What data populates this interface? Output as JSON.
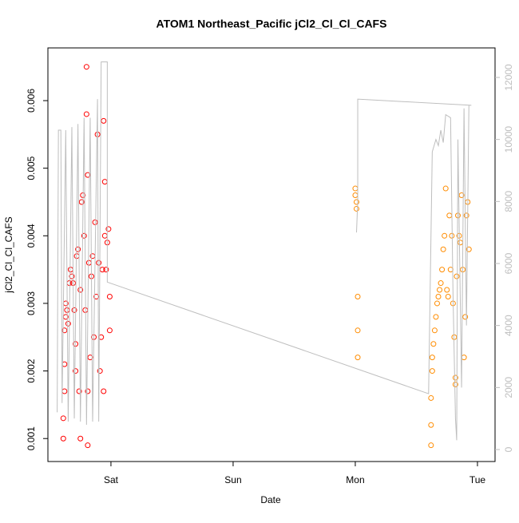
{
  "chart_data": {
    "type": "scatter",
    "title": "ATOM1 Northeast_Pacific jCl2_Cl_Cl_CAFS",
    "x_label": "Date",
    "y_label": "jCl2_Cl_Cl_CAFS",
    "xlim": [
      -0.516,
      3.144
    ],
    "xticks": [
      {
        "value": 0,
        "label": "Sat"
      },
      {
        "value": 1,
        "label": "Sun"
      },
      {
        "value": 2,
        "label": "Mon"
      },
      {
        "value": 3,
        "label": "Tue"
      }
    ],
    "ylim": [
      0.00066,
      0.00678
    ],
    "yticks": [
      0.001,
      0.002,
      0.003,
      0.004,
      0.005,
      0.006
    ],
    "y2lim": [
      -386,
      12952
    ],
    "y2ticks": [
      0,
      2000,
      4000,
      6000,
      8000,
      10000,
      12000
    ],
    "series": [
      {
        "color": "#ff0000",
        "x": [
          -0.39,
          -0.39,
          -0.38,
          -0.38,
          -0.38,
          -0.37,
          -0.37,
          -0.36,
          -0.35,
          -0.34,
          -0.33,
          -0.32,
          -0.31,
          -0.3,
          -0.29,
          -0.29,
          -0.28,
          -0.27,
          -0.26,
          -0.25,
          -0.25,
          -0.24,
          -0.23,
          -0.22,
          -0.21,
          -0.2,
          -0.2,
          -0.19,
          -0.19,
          -0.19,
          -0.18,
          -0.17,
          -0.16,
          -0.15,
          -0.14,
          -0.13,
          -0.12,
          -0.11,
          -0.1,
          -0.09,
          -0.08,
          -0.07,
          -0.06,
          -0.06,
          -0.05,
          -0.05,
          -0.04,
          -0.03,
          -0.02,
          -0.01,
          -0.01
        ],
        "values": [
          0.001,
          0.0013,
          0.0017,
          0.0021,
          0.0026,
          0.0028,
          0.003,
          0.0029,
          0.0027,
          0.0033,
          0.0035,
          0.0034,
          0.0033,
          0.0029,
          0.0024,
          0.002,
          0.0037,
          0.0038,
          0.0017,
          0.001,
          0.0032,
          0.0045,
          0.0046,
          0.004,
          0.0029,
          0.0065,
          0.0058,
          0.0049,
          0.0017,
          0.0009,
          0.0036,
          0.0022,
          0.0034,
          0.0037,
          0.0025,
          0.0042,
          0.0031,
          0.0055,
          0.0036,
          0.002,
          0.0025,
          0.0035,
          0.0017,
          0.0057,
          0.0048,
          0.004,
          0.0035,
          0.0039,
          0.0041,
          0.0031,
          0.0026
        ]
      },
      {
        "color": "#ff8c00",
        "x": [
          2.0,
          2.0,
          2.01,
          2.01,
          2.02,
          2.02,
          2.02,
          2.62,
          2.62,
          2.62,
          2.63,
          2.63,
          2.64,
          2.65,
          2.66,
          2.67,
          2.68,
          2.69,
          2.7,
          2.71,
          2.72,
          2.73,
          2.74,
          2.75,
          2.76,
          2.77,
          2.78,
          2.79,
          2.8,
          2.81,
          2.82,
          2.82,
          2.83,
          2.84,
          2.85,
          2.86,
          2.87,
          2.88,
          2.89,
          2.9,
          2.91,
          2.92,
          2.93
        ],
        "values": [
          0.0047,
          0.0046,
          0.0045,
          0.0044,
          0.0031,
          0.0026,
          0.0022,
          0.0009,
          0.0012,
          0.0016,
          0.002,
          0.0022,
          0.0024,
          0.0026,
          0.0028,
          0.003,
          0.0031,
          0.0032,
          0.0033,
          0.0035,
          0.0038,
          0.004,
          0.0047,
          0.0032,
          0.0031,
          0.0043,
          0.0035,
          0.004,
          0.003,
          0.0025,
          0.0018,
          0.0019,
          0.0034,
          0.0043,
          0.004,
          0.0039,
          0.0046,
          0.0035,
          0.0022,
          0.0028,
          0.0043,
          0.0045,
          0.0038
        ]
      },
      {
        "type": "line",
        "axis": "y2",
        "color": "#bebebe",
        "x": [
          -0.44,
          -0.43,
          -0.41,
          -0.4,
          -0.37,
          -0.35,
          -0.32,
          -0.3,
          -0.27,
          -0.25,
          -0.22,
          -0.2,
          -0.17,
          -0.15,
          -0.11,
          -0.1,
          -0.08,
          -0.03,
          -0.03,
          2.6,
          2.63,
          2.66,
          2.68,
          2.7,
          2.72,
          2.74,
          2.78,
          2.8,
          2.82,
          2.83,
          2.84,
          2.87,
          2.89,
          2.91,
          2.93,
          2.95,
          2.02,
          2.02,
          2.01
        ],
        "values": [
          1200,
          10300,
          10300,
          1500,
          10300,
          900,
          10400,
          1000,
          10500,
          900,
          10700,
          800,
          10700,
          900,
          11300,
          900,
          12500,
          12500,
          5400,
          1800,
          9600,
          10000,
          9800,
          10300,
          9900,
          10800,
          10700,
          5000,
          1000,
          300,
          10000,
          2000,
          11000,
          4000,
          11100,
          11100,
          11300,
          8000,
          7000
        ]
      }
    ]
  }
}
